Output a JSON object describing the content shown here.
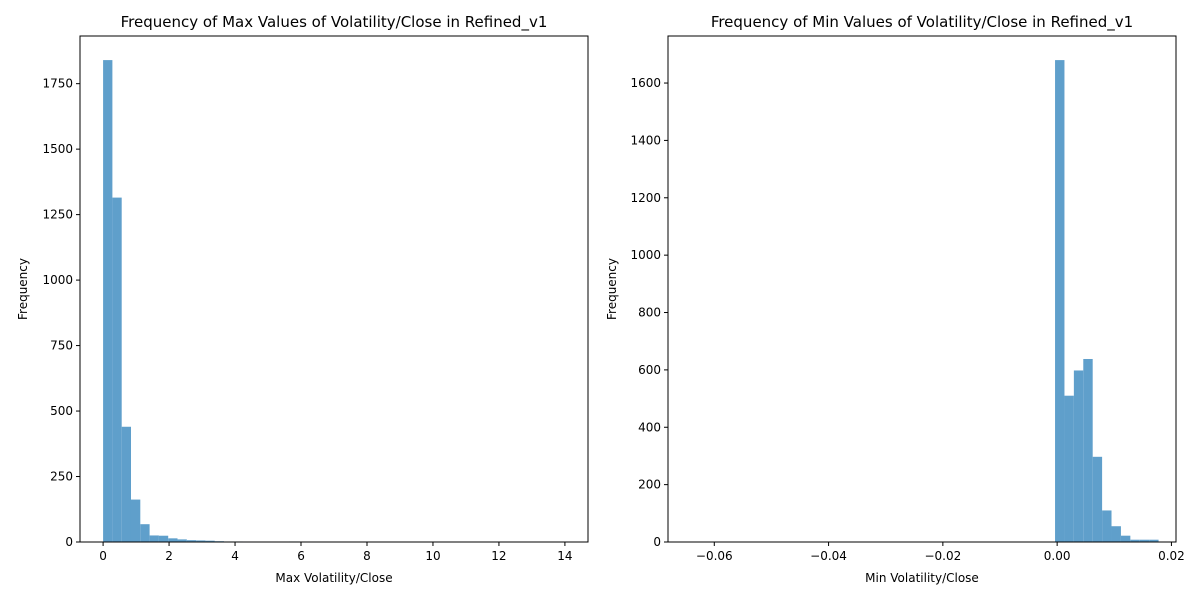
{
  "chart_data": [
    {
      "type": "bar",
      "title": "Frequency of Max Values of Volatility/Close in Refined_v1",
      "xlabel": "Max Volatility/Close",
      "ylabel": "Frequency",
      "xlim": [
        -0.7,
        14.7
      ],
      "ylim": [
        0,
        1932
      ],
      "xticks": [
        0,
        2,
        4,
        6,
        8,
        10,
        12,
        14
      ],
      "xtick_labels": [
        "0",
        "2",
        "4",
        "6",
        "8",
        "10",
        "12",
        "14"
      ],
      "yticks": [
        0,
        250,
        500,
        750,
        1000,
        1250,
        1500,
        1750
      ],
      "ytick_labels": [
        "0",
        "250",
        "500",
        "750",
        "1000",
        "1250",
        "1500",
        "1750"
      ],
      "bin_start": 0.0,
      "bin_width": 0.282,
      "values": [
        1840,
        1315,
        440,
        162,
        68,
        25,
        24,
        14,
        10,
        7,
        6,
        5,
        3,
        2,
        2,
        1,
        1,
        0,
        0,
        0,
        2,
        1,
        1,
        0,
        0,
        1,
        0,
        0,
        0,
        1,
        1,
        1,
        0,
        0,
        0,
        0,
        0,
        0,
        0,
        0,
        0,
        0,
        0,
        0,
        0,
        0,
        0,
        0,
        0,
        1
      ],
      "color": "#5f9fcb",
      "grid": false
    },
    {
      "type": "bar",
      "title": "Frequency of Min Values of Volatility/Close in Refined_v1",
      "xlabel": "Min Volatility/Close",
      "ylabel": "Frequency",
      "xlim": [
        -0.0681,
        0.0208
      ],
      "ylim": [
        0,
        1764
      ],
      "xticks": [
        -0.06,
        -0.04,
        -0.02,
        0.0,
        0.02
      ],
      "xtick_labels": [
        "−0.06",
        "−0.04",
        "−0.02",
        "0.00",
        "0.02"
      ],
      "yticks": [
        0,
        200,
        400,
        600,
        800,
        1000,
        1200,
        1400,
        1600
      ],
      "ytick_labels": [
        "0",
        "200",
        "400",
        "600",
        "800",
        "1000",
        "1200",
        "1400",
        "1600"
      ],
      "bin_start": -0.0646,
      "bin_width": 0.001647,
      "values": [
        1,
        0,
        1,
        0,
        0,
        0,
        0,
        0,
        0,
        0,
        1,
        0,
        0,
        0,
        0,
        0,
        0,
        0,
        0,
        1,
        0,
        1,
        0,
        0,
        1,
        0,
        0,
        0,
        0,
        0,
        0,
        0,
        0,
        0,
        1,
        1,
        1,
        0,
        0,
        1680,
        510,
        598,
        638,
        297,
        110,
        55,
        22,
        8,
        8,
        8
      ],
      "color": "#5f9fcb",
      "grid": false
    }
  ]
}
